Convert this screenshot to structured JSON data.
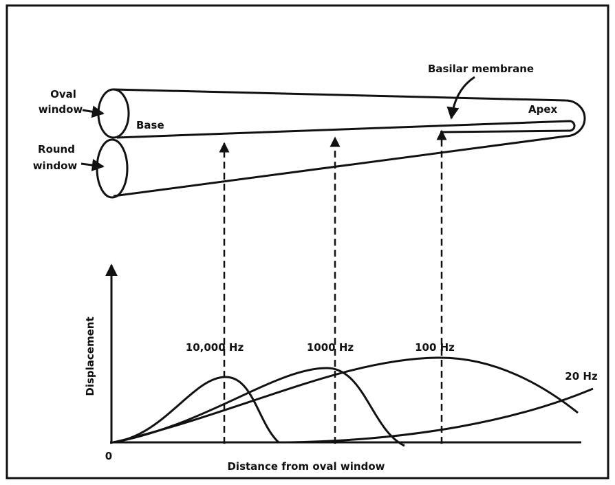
{
  "labels": {
    "oval_window": [
      "Oval",
      "window"
    ],
    "round_window": [
      "Round",
      "window"
    ],
    "base": "Base",
    "apex": "Apex",
    "basilar_membrane": "Basilar membrane",
    "y_axis": "Displacement",
    "x_axis": "Distance from oval window",
    "origin": "0",
    "curves": [
      "10,000 Hz",
      "1000 Hz",
      "100 Hz",
      "20 Hz"
    ]
  }
}
